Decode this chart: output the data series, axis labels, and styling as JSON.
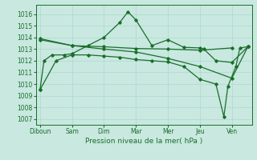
{
  "xlabel": "Pression niveau de la mer( hPa )",
  "background_color": "#c8e8e0",
  "grid_color": "#b0d8d0",
  "line_color": "#1a6e2a",
  "ylim": [
    1006.5,
    1016.8
  ],
  "yticks": [
    1007,
    1008,
    1009,
    1010,
    1011,
    1012,
    1013,
    1014,
    1015,
    1016
  ],
  "x_labels": [
    "Diboun",
    "Sam",
    "Dim",
    "Mar",
    "Mer",
    "Jeu",
    "Ven"
  ],
  "x_ticks": [
    0,
    4,
    8,
    12,
    16,
    20,
    24
  ],
  "xlim": [
    -0.5,
    26.5
  ],
  "line1_x": [
    0,
    4,
    8,
    12,
    16,
    20,
    24
  ],
  "line1_y": [
    1013.9,
    1013.3,
    1013.2,
    1013.05,
    1013.0,
    1012.9,
    1013.1
  ],
  "line2_x": [
    0,
    0.5,
    1.5,
    3,
    4,
    6,
    8,
    10,
    11,
    12,
    14,
    16,
    18,
    20,
    20.5,
    22,
    24,
    26
  ],
  "line2_y": [
    1009.5,
    1012.0,
    1012.5,
    1012.5,
    1012.6,
    1013.3,
    1014.0,
    1015.3,
    1016.2,
    1015.5,
    1013.3,
    1013.8,
    1013.15,
    1013.1,
    1013.0,
    1012.0,
    1011.85,
    1013.2
  ],
  "line3_x": [
    0,
    4,
    8,
    12,
    16,
    20,
    24,
    26
  ],
  "line3_y": [
    1013.8,
    1013.3,
    1013.0,
    1012.75,
    1012.2,
    1011.5,
    1010.5,
    1013.2
  ],
  "line4_x": [
    0,
    2,
    4,
    6,
    8,
    10,
    12,
    14,
    16,
    18,
    20,
    22,
    23,
    23.5,
    24.5,
    25,
    26
  ],
  "line4_y": [
    1009.5,
    1012.0,
    1012.5,
    1012.5,
    1012.4,
    1012.3,
    1012.1,
    1012.0,
    1011.9,
    1011.5,
    1010.4,
    1010.0,
    1007.2,
    1009.8,
    1011.5,
    1013.1,
    1013.2
  ],
  "font_size_tick": 5.5,
  "font_size_xlabel": 6.5
}
